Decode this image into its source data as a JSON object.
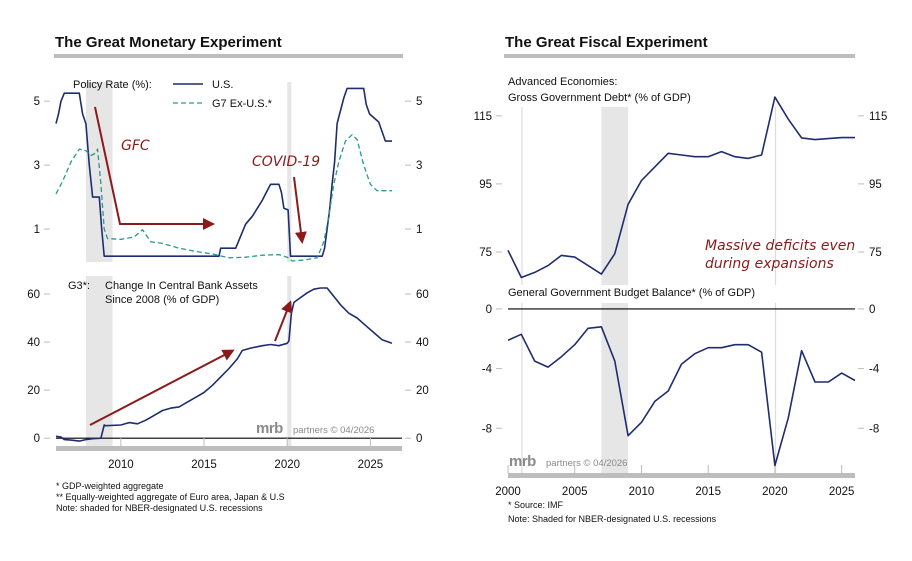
{
  "colors": {
    "us_line": "#1f2d6e",
    "g7_line": "#2a9a8a",
    "arrow": "#8b1a1a",
    "recession_shade": "#e6e6e6",
    "title_rule": "#bdbdbd"
  },
  "left": {
    "title": "The Great Monetary Experiment",
    "top_legend_label": "Policy Rate (%):",
    "legend_us": "U.S.",
    "legend_g7": "G7 Ex-U.S.*",
    "annotation_gfc": "GFC",
    "annotation_covid": "COVID-19",
    "bottom_label_prefix": "G3*:",
    "bottom_label_line1": "Change In Central Bank Assets",
    "bottom_label_line2": "Since 2008 (% of GDP)",
    "watermark_brand": "mrb",
    "watermark_text": "partners © 04/2026",
    "footnotes": [
      "*  GDP-weighted aggregate",
      "** Equally-weighted aggregate of Euro area, Japan & U.S",
      "Note: shaded for NBER-designated U.S. recessions"
    ]
  },
  "right": {
    "title": "The Great Fiscal Experiment",
    "top_label_line1": "Advanced Economies:",
    "top_label_line2": "Gross Government Debt* (% of GDP)",
    "annotation_line1": "Massive deficits even",
    "annotation_line2": "during expansions",
    "bottom_label": "General Government Budget Balance* (% of GDP)",
    "watermark_brand": "mrb",
    "watermark_text": "partners © 04/2026",
    "footnotes": [
      "* Source: IMF",
      "Note: Shaded for NBER-designated U.S. recessions"
    ]
  },
  "chart_data": [
    {
      "id": "policy-rate",
      "type": "line",
      "title": "Policy Rate (%)",
      "xlim": [
        2006.1,
        2026.9
      ],
      "ylim": [
        0,
        5.6
      ],
      "yticks": [
        1,
        3,
        5
      ],
      "recessions": [
        [
          2007.9,
          2009.5
        ],
        [
          2020.0,
          2020.25
        ]
      ],
      "series": [
        {
          "name": "U.S.",
          "style": "solid",
          "points": [
            [
              2006.1,
              4.3
            ],
            [
              2006.25,
              4.6
            ],
            [
              2006.4,
              5.0
            ],
            [
              2006.6,
              5.25
            ],
            [
              2007.5,
              5.25
            ],
            [
              2007.7,
              4.6
            ],
            [
              2007.9,
              4.3
            ],
            [
              2008.1,
              3.0
            ],
            [
              2008.3,
              2.0
            ],
            [
              2008.7,
              2.0
            ],
            [
              2008.85,
              1.0
            ],
            [
              2009.0,
              0.15
            ],
            [
              2015.9,
              0.15
            ],
            [
              2016.0,
              0.4
            ],
            [
              2016.9,
              0.4
            ],
            [
              2017.1,
              0.65
            ],
            [
              2017.3,
              0.9
            ],
            [
              2017.5,
              1.15
            ],
            [
              2017.9,
              1.4
            ],
            [
              2018.2,
              1.65
            ],
            [
              2018.5,
              1.9
            ],
            [
              2018.75,
              2.15
            ],
            [
              2019.0,
              2.4
            ],
            [
              2019.5,
              2.4
            ],
            [
              2019.65,
              2.15
            ],
            [
              2019.8,
              1.65
            ],
            [
              2020.05,
              1.6
            ],
            [
              2020.2,
              0.15
            ],
            [
              2022.1,
              0.15
            ],
            [
              2022.25,
              0.4
            ],
            [
              2022.4,
              1.0
            ],
            [
              2022.55,
              1.6
            ],
            [
              2022.7,
              2.4
            ],
            [
              2022.85,
              3.1
            ],
            [
              2023.0,
              4.3
            ],
            [
              2023.15,
              4.6
            ],
            [
              2023.4,
              5.1
            ],
            [
              2023.6,
              5.4
            ],
            [
              2024.6,
              5.4
            ],
            [
              2024.75,
              4.9
            ],
            [
              2024.95,
              4.6
            ],
            [
              2025.5,
              4.35
            ],
            [
              2025.9,
              3.75
            ],
            [
              2026.3,
              3.75
            ]
          ]
        },
        {
          "name": "G7 Ex-U.S.*",
          "style": "dashed",
          "points": [
            [
              2006.1,
              2.1
            ],
            [
              2006.5,
              2.5
            ],
            [
              2007.0,
              3.1
            ],
            [
              2007.5,
              3.5
            ],
            [
              2007.9,
              3.45
            ],
            [
              2008.2,
              3.3
            ],
            [
              2008.4,
              3.35
            ],
            [
              2008.6,
              3.5
            ],
            [
              2008.8,
              2.4
            ],
            [
              2009.0,
              1.0
            ],
            [
              2009.2,
              0.7
            ],
            [
              2010.0,
              0.68
            ],
            [
              2010.8,
              0.75
            ],
            [
              2011.3,
              0.98
            ],
            [
              2011.8,
              0.6
            ],
            [
              2012.5,
              0.55
            ],
            [
              2013.5,
              0.4
            ],
            [
              2014.5,
              0.3
            ],
            [
              2015.5,
              0.22
            ],
            [
              2016.5,
              0.1
            ],
            [
              2017.5,
              0.12
            ],
            [
              2018.5,
              0.18
            ],
            [
              2019.5,
              0.2
            ],
            [
              2020.0,
              0.12
            ],
            [
              2020.3,
              0.0
            ],
            [
              2021.0,
              0.03
            ],
            [
              2021.8,
              0.1
            ],
            [
              2022.2,
              0.6
            ],
            [
              2022.5,
              1.4
            ],
            [
              2022.8,
              2.4
            ],
            [
              2023.1,
              3.1
            ],
            [
              2023.5,
              3.75
            ],
            [
              2023.9,
              3.95
            ],
            [
              2024.2,
              3.8
            ],
            [
              2024.6,
              3.0
            ],
            [
              2025.0,
              2.4
            ],
            [
              2025.4,
              2.2
            ],
            [
              2026.3,
              2.2
            ]
          ]
        }
      ]
    },
    {
      "id": "cb-assets",
      "type": "line",
      "title": "G3*: Change In Central Bank Assets Since 2008 (% of GDP)",
      "xlim": [
        2006.1,
        2026.9
      ],
      "ylim": [
        -7,
        65
      ],
      "yticks": [
        0,
        20,
        40,
        60
      ],
      "xticks": [
        2010,
        2015,
        2020,
        2025
      ],
      "recessions": [
        [
          2007.9,
          2009.5
        ],
        [
          2020.0,
          2020.25
        ]
      ],
      "series": [
        {
          "name": "G3 Central Bank Assets",
          "style": "solid",
          "points": [
            [
              2006.1,
              0.8
            ],
            [
              2006.4,
              0.5
            ],
            [
              2006.6,
              -0.6
            ],
            [
              2007.0,
              -0.8
            ],
            [
              2007.5,
              -1.2
            ],
            [
              2007.9,
              -0.6
            ],
            [
              2008.3,
              -0.2
            ],
            [
              2008.8,
              0
            ],
            [
              2009.0,
              5.5
            ],
            [
              2009.1,
              5.2
            ],
            [
              2010.0,
              5.5
            ],
            [
              2010.5,
              6.5
            ],
            [
              2011.0,
              6.0
            ],
            [
              2011.5,
              7.5
            ],
            [
              2012.0,
              9.5
            ],
            [
              2012.5,
              11.5
            ],
            [
              2013.0,
              12.5
            ],
            [
              2013.5,
              13.0
            ],
            [
              2014.0,
              15.0
            ],
            [
              2014.5,
              17.0
            ],
            [
              2015.0,
              19.0
            ],
            [
              2015.5,
              22.0
            ],
            [
              2016.0,
              25.5
            ],
            [
              2016.5,
              29.0
            ],
            [
              2017.0,
              33.0
            ],
            [
              2017.3,
              36.5
            ],
            [
              2017.8,
              37.5
            ],
            [
              2018.5,
              38.5
            ],
            [
              2019.0,
              39.0
            ],
            [
              2019.5,
              38.5
            ],
            [
              2020.0,
              39.5
            ],
            [
              2020.1,
              40.5
            ],
            [
              2020.25,
              52.0
            ],
            [
              2020.4,
              56.5
            ],
            [
              2020.8,
              58.5
            ],
            [
              2021.2,
              60.5
            ],
            [
              2021.6,
              62.0
            ],
            [
              2022.0,
              62.5
            ],
            [
              2022.4,
              62.5
            ],
            [
              2022.8,
              59.0
            ],
            [
              2023.2,
              55.5
            ],
            [
              2023.7,
              52.0
            ],
            [
              2024.2,
              50.0
            ],
            [
              2024.7,
              47.0
            ],
            [
              2025.2,
              44.0
            ],
            [
              2025.7,
              41.0
            ],
            [
              2026.3,
              39.5
            ]
          ]
        }
      ]
    },
    {
      "id": "gross-debt",
      "type": "line",
      "title": "Advanced Economies: Gross Government Debt* (% of GDP)",
      "xlim": [
        2000,
        2026
      ],
      "ylim": [
        65,
        122
      ],
      "yticks": [
        75,
        95,
        115
      ],
      "recessions": [
        [
          2001.0,
          2001.05
        ],
        [
          2007.0,
          2009.0
        ],
        [
          2020.0,
          2020.05
        ]
      ],
      "x": [
        2000,
        2001,
        2002,
        2003,
        2004,
        2005,
        2006,
        2007,
        2008,
        2009,
        2010,
        2011,
        2012,
        2013,
        2014,
        2015,
        2016,
        2017,
        2018,
        2019,
        2020,
        2021,
        2022,
        2023,
        2024,
        2025,
        2026
      ],
      "values": [
        75.5,
        67.5,
        69.0,
        71.0,
        74.0,
        73.5,
        71.0,
        68.5,
        74.5,
        89.0,
        96.0,
        100.0,
        104.0,
        103.5,
        103.0,
        103.0,
        104.5,
        103.0,
        102.5,
        103.5,
        120.5,
        114.0,
        108.5,
        108.0,
        108.3,
        108.6,
        108.6
      ]
    },
    {
      "id": "budget-balance",
      "type": "line",
      "title": "General Government Budget Balance* (% of GDP)",
      "xlim": [
        2000,
        2026
      ],
      "ylim": [
        -11.0,
        0.8
      ],
      "yticks": [
        0,
        -4,
        -8
      ],
      "xticks": [
        2000,
        2005,
        2010,
        2015,
        2020,
        2025
      ],
      "recessions": [
        [
          2001.0,
          2001.05
        ],
        [
          2007.0,
          2009.0
        ],
        [
          2020.0,
          2020.05
        ]
      ],
      "x": [
        2000,
        2001,
        2002,
        2003,
        2004,
        2005,
        2006,
        2007,
        2008,
        2009,
        2010,
        2011,
        2012,
        2013,
        2014,
        2015,
        2016,
        2017,
        2018,
        2019,
        2020,
        2021,
        2022,
        2023,
        2024,
        2025,
        2026
      ],
      "values": [
        -2.1,
        -1.7,
        -3.5,
        -3.9,
        -3.2,
        -2.4,
        -1.3,
        -1.2,
        -3.5,
        -8.5,
        -7.6,
        -6.2,
        -5.5,
        -3.7,
        -3.0,
        -2.6,
        -2.6,
        -2.4,
        -2.4,
        -2.9,
        -10.5,
        -7.3,
        -2.8,
        -4.9,
        -4.9,
        -4.3,
        -4.8
      ]
    }
  ]
}
